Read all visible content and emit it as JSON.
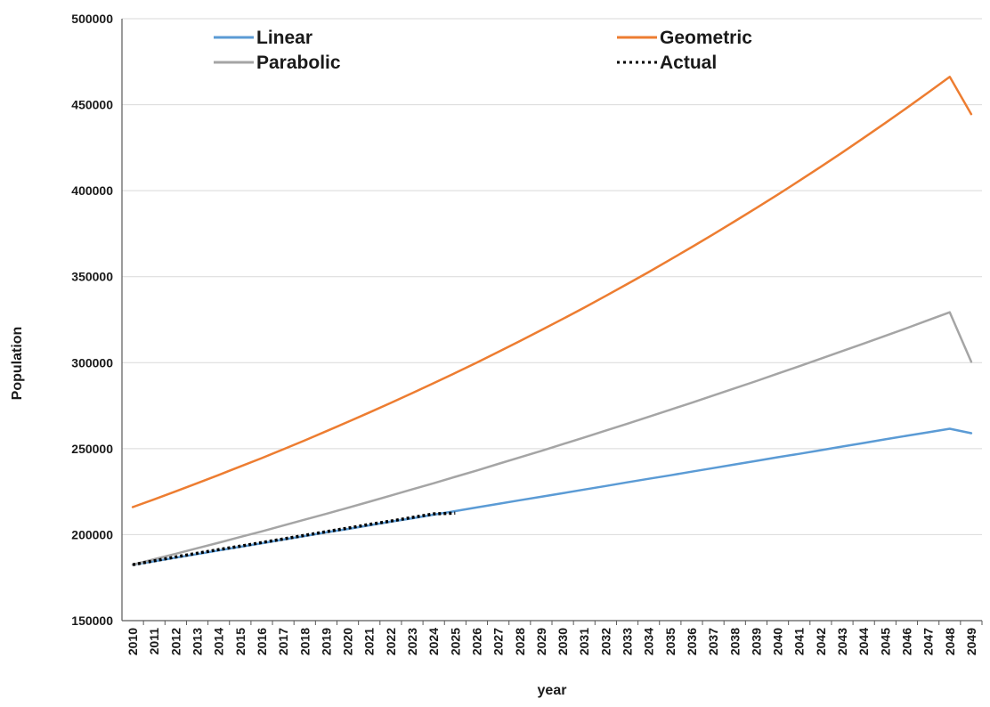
{
  "chart_data": {
    "type": "line",
    "title": "",
    "xlabel": "year",
    "ylabel": "Population",
    "x": [
      2010,
      2011,
      2012,
      2013,
      2014,
      2015,
      2016,
      2017,
      2018,
      2019,
      2020,
      2021,
      2022,
      2023,
      2024,
      2025,
      2026,
      2027,
      2028,
      2029,
      2030,
      2031,
      2032,
      2033,
      2034,
      2035,
      2036,
      2037,
      2038,
      2039,
      2040,
      2041,
      2042,
      2043,
      2044,
      2045,
      2046,
      2047,
      2048,
      2049
    ],
    "ylim": [
      150000,
      500000
    ],
    "yticks": [
      150000,
      200000,
      250000,
      300000,
      350000,
      400000,
      450000,
      500000
    ],
    "grid": "horizontal",
    "legend_position": "top",
    "series": [
      {
        "name": "Linear",
        "color": "#5B9BD5",
        "style": "solid",
        "values": [
          182500,
          184500,
          186600,
          188700,
          190800,
          192900,
          195000,
          197100,
          199200,
          201300,
          203300,
          205400,
          207500,
          209500,
          211600,
          213700,
          215800,
          217900,
          220000,
          222000,
          224100,
          226200,
          228300,
          230400,
          232500,
          234500,
          236600,
          238700,
          240800,
          242900,
          245000,
          247000,
          249100,
          251200,
          253300,
          255400,
          257500,
          259500,
          261600,
          259000
        ]
      },
      {
        "name": "Geometric",
        "color": "#ED7D31",
        "style": "solid",
        "values": [
          216000,
          220500,
          225200,
          229900,
          234700,
          239600,
          244500,
          249600,
          254800,
          260100,
          265500,
          271000,
          276600,
          282300,
          288100,
          294000,
          300000,
          306200,
          312500,
          318900,
          325400,
          332000,
          338800,
          345700,
          352700,
          359900,
          367200,
          374600,
          382200,
          389900,
          397700,
          405700,
          413900,
          422200,
          430700,
          439300,
          448100,
          457100,
          466200,
          444500
        ]
      },
      {
        "name": "Parabolic",
        "color": "#A5A5A5",
        "style": "solid",
        "values": [
          182500,
          185700,
          188900,
          192100,
          195300,
          198600,
          201900,
          205300,
          208700,
          212100,
          215600,
          219100,
          222700,
          226300,
          229900,
          233600,
          237300,
          241100,
          244900,
          248700,
          252600,
          256500,
          260500,
          264500,
          268500,
          272600,
          276700,
          280900,
          285100,
          289300,
          293600,
          297900,
          302300,
          306700,
          311100,
          315600,
          320100,
          324700,
          329300,
          300500
        ]
      },
      {
        "name": "Actual",
        "color": "#000000",
        "style": "dotted",
        "values": [
          182500,
          184800,
          187000,
          189200,
          191300,
          193300,
          195400,
          197500,
          199600,
          201700,
          203800,
          205900,
          207900,
          210000,
          212100,
          212500,
          null,
          null,
          null,
          null,
          null,
          null,
          null,
          null,
          null,
          null,
          null,
          null,
          null,
          null,
          null,
          null,
          null,
          null,
          null,
          null,
          null,
          null,
          null,
          null
        ]
      }
    ]
  }
}
